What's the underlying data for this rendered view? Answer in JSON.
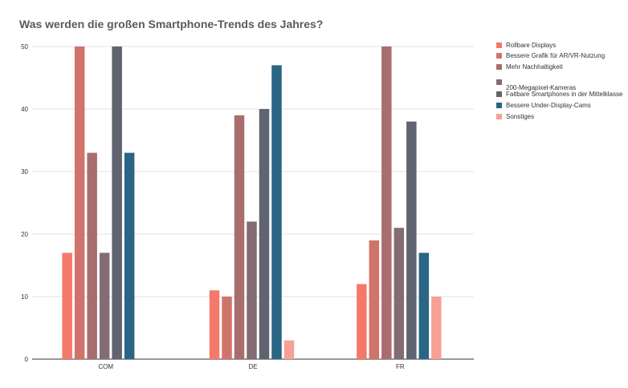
{
  "chart_data": {
    "type": "bar",
    "title": "Was werden die großen Smartphone-Trends des Jahres?",
    "xlabel": "",
    "ylabel": "",
    "ylim": [
      0,
      50
    ],
    "yticks": [
      0,
      10,
      20,
      30,
      40,
      50
    ],
    "grid": true,
    "legend_position": "right",
    "categories": [
      "COM",
      "DE",
      "FR"
    ],
    "series": [
      {
        "name": "Rollbare Displays",
        "color": "#f4796a",
        "values": [
          17,
          11,
          12
        ]
      },
      {
        "name": "Bessere Grafik für AR/VR-Nutzung",
        "color": "#d0746b",
        "values": [
          50,
          10,
          19
        ]
      },
      {
        "name": "Mehr Nachhaltigkeit",
        "color": "#aa6d6e",
        "values": [
          33,
          39,
          50
        ]
      },
      {
        "name": "200-Megapixel-Kameras",
        "color": "#846c74",
        "values": [
          17,
          22,
          21
        ]
      },
      {
        "name": "Faltbare Smartphones in der Mittelklasse",
        "color": "#5f6470",
        "values": [
          50,
          40,
          38
        ]
      },
      {
        "name": "Bessere Under-Display-Cams",
        "color": "#2a6586",
        "values": [
          33,
          47,
          17
        ]
      },
      {
        "name": "Sonstiges",
        "color": "#f6a193",
        "values": [
          null,
          3,
          10
        ]
      }
    ]
  }
}
